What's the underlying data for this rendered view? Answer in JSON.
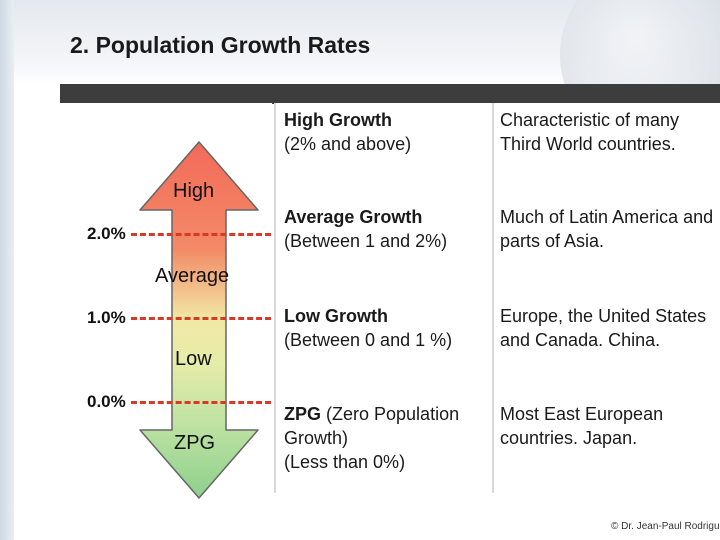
{
  "title": "2. Population Growth Rates",
  "table": {
    "rows": [
      {
        "category_bold": "High Growth",
        "category_rest": "",
        "range": "(2% and above)",
        "description": "Characteristic of many Third World countries."
      },
      {
        "category_bold": "Average Growth",
        "category_rest": "",
        "range": "(Between 1 and 2%)",
        "description": "Much of Latin America and parts of Asia."
      },
      {
        "category_bold": "Low Growth",
        "category_rest": "",
        "range": "(Between 0 and 1 %)",
        "description": "Europe, the United States and Canada. China."
      },
      {
        "category_bold": "ZPG",
        "category_rest": " (Zero Population Growth)",
        "range": "(Less than 0%)",
        "description": "Most East European countries. Japan."
      }
    ]
  },
  "arrow": {
    "levels": [
      "High",
      "Average",
      "Low",
      "ZPG"
    ],
    "thresholds": [
      "2.0%",
      "1.0%",
      "0.0%"
    ],
    "colors": {
      "top": "#f36a5a",
      "middle": "#f1e9a6",
      "bottom": "#8ed08c",
      "dash": "#d83a2a"
    }
  },
  "copyright": "© Dr. Jean-Paul Rodrigue"
}
